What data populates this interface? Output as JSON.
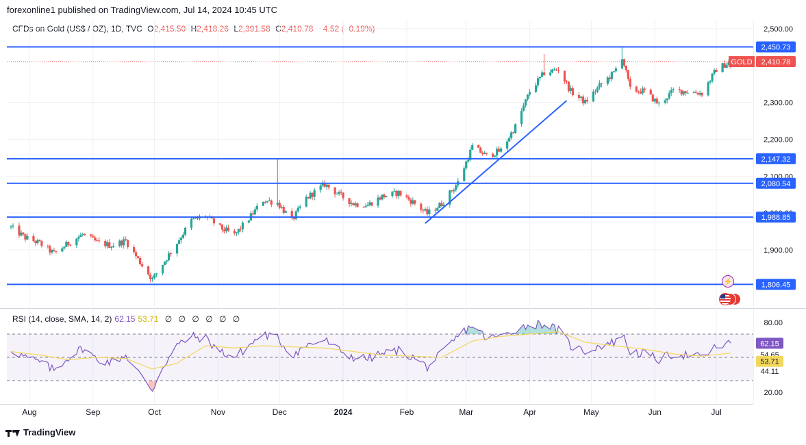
{
  "header": {
    "published_text": "forexonline1 published on TradingView.com, Jul 14, 2024 10:45 UTC"
  },
  "legend": {
    "symbol": "CFDs on Gold (US$ / OZ), 1D, TVC",
    "o_label": "O",
    "o_value": "2,415.50",
    "h_label": "H",
    "h_value": "2,418.26",
    "l_label": "L",
    "l_value": "2,391.58",
    "c_label": "C",
    "c_value": "2,410.78",
    "change": "−4.52 (−0.19%)"
  },
  "rsi_legend": {
    "label": "RSI (14, close, SMA, 14, 2)",
    "rsi_value": "62.15",
    "sma_value": "53.71",
    "null_values": [
      "∅",
      "∅",
      "∅",
      "∅",
      "∅",
      "∅"
    ]
  },
  "footer": {
    "brand": "TradingView"
  },
  "icons": {
    "flash": "flash-icon",
    "flag": "us-flag-icon"
  },
  "colors": {
    "up": "#26a69a",
    "down": "#ef5350",
    "line": "#2962ff",
    "rsi": "#7e57c2",
    "sma": "#f2d75c",
    "grid": "#eef0f4"
  },
  "chart_data": [
    {
      "type": "candlestick",
      "title": "CFDs on Gold (US$ / OZ), 1D, TVC",
      "x_ticks": [
        "Aug",
        "Sep",
        "Oct",
        "Nov",
        "Dec",
        "2024",
        "Feb",
        "Mar",
        "Apr",
        "May",
        "Jun",
        "Jul"
      ],
      "y_ticks": [
        "2,500.00",
        "2,300.00",
        "2,200.00",
        "2,100.00",
        "2,000.00",
        "1,900.00"
      ],
      "ylim": [
        1780,
        2500
      ],
      "current_price": 2410.78,
      "current_label": "2,410.78",
      "symbol_badge": "GOLD",
      "horizontal_lines": [
        {
          "value": 2450.73,
          "label": "2,450.73"
        },
        {
          "value": 2147.32,
          "label": "2,147.32"
        },
        {
          "value": 2080.54,
          "label": "2,080.54"
        },
        {
          "value": 1988.85,
          "label": "1,988.85"
        },
        {
          "value": 1806.45,
          "label": "1,806.45"
        }
      ],
      "trendline": {
        "start": [
          "2024-02-14",
          1972
        ],
        "end": [
          "2024-04-23",
          2305
        ]
      },
      "series": [
        {
          "points": [
            [
              "2023-07-27",
              1961
            ],
            [
              "2023-08-03",
              1933
            ],
            [
              "2023-08-10",
              1918
            ],
            [
              "2023-08-17",
              1890
            ],
            [
              "2023-08-24",
              1918
            ],
            [
              "2023-08-31",
              1942
            ],
            [
              "2023-09-07",
              1920
            ],
            [
              "2023-09-14",
              1912
            ],
            [
              "2023-09-21",
              1925
            ],
            [
              "2023-09-28",
              1866
            ],
            [
              "2023-10-04",
              1820
            ],
            [
              "2023-10-09",
              1862
            ],
            [
              "2023-10-16",
              1920
            ],
            [
              "2023-10-23",
              1980
            ],
            [
              "2023-10-30",
              1992
            ],
            [
              "2023-11-06",
              1960
            ],
            [
              "2023-11-13",
              1940
            ],
            [
              "2023-11-20",
              1985
            ],
            [
              "2023-11-27",
              2035
            ],
            [
              "2023-12-04",
              2028
            ],
            [
              "2023-12-11",
              1980
            ],
            [
              "2023-12-18",
              2040
            ],
            [
              "2023-12-27",
              2078
            ],
            [
              "2024-01-03",
              2050
            ],
            [
              "2024-01-10",
              2025
            ],
            [
              "2024-01-17",
              2022
            ],
            [
              "2024-01-24",
              2045
            ],
            [
              "2024-02-01",
              2055
            ],
            [
              "2024-02-08",
              2030
            ],
            [
              "2024-02-15",
              1998
            ],
            [
              "2024-02-22",
              2025
            ],
            [
              "2024-03-01",
              2083
            ],
            [
              "2024-03-08",
              2180
            ],
            [
              "2024-03-15",
              2155
            ],
            [
              "2024-03-22",
              2170
            ],
            [
              "2024-03-29",
              2235
            ],
            [
              "2024-04-05",
              2330
            ],
            [
              "2024-04-12",
              2380
            ],
            [
              "2024-04-19",
              2390
            ],
            [
              "2024-04-25",
              2330
            ],
            [
              "2024-05-02",
              2300
            ],
            [
              "2024-05-09",
              2345
            ],
            [
              "2024-05-16",
              2380
            ],
            [
              "2024-05-20",
              2425
            ],
            [
              "2024-05-24",
              2335
            ],
            [
              "2024-05-31",
              2330
            ],
            [
              "2024-06-07",
              2295
            ],
            [
              "2024-06-14",
              2332
            ],
            [
              "2024-06-21",
              2330
            ],
            [
              "2024-06-28",
              2325
            ],
            [
              "2024-07-05",
              2390
            ],
            [
              "2024-07-12",
              2411
            ]
          ]
        }
      ]
    },
    {
      "type": "line",
      "title": "RSI (14, close, SMA, 14, 2)",
      "y_ticks": [
        "80.00",
        "20.00"
      ],
      "ylim": [
        15,
        85
      ],
      "levels": [
        70,
        50,
        30
      ],
      "value_labels": [
        "62.15",
        "54.65",
        "53.71",
        "44.11"
      ],
      "series": [
        {
          "name": "RSI",
          "color": "#7e57c2",
          "points": [
            [
              "2023-07-27",
              57
            ],
            [
              "2023-08-03",
              50
            ],
            [
              "2023-08-10",
              46
            ],
            [
              "2023-08-17",
              39
            ],
            [
              "2023-08-24",
              50
            ],
            [
              "2023-08-31",
              58
            ],
            [
              "2023-09-07",
              48
            ],
            [
              "2023-09-14",
              46
            ],
            [
              "2023-09-21",
              52
            ],
            [
              "2023-09-28",
              35
            ],
            [
              "2023-10-04",
              22
            ],
            [
              "2023-10-09",
              42
            ],
            [
              "2023-10-16",
              60
            ],
            [
              "2023-10-23",
              68
            ],
            [
              "2023-10-30",
              66
            ],
            [
              "2023-11-06",
              55
            ],
            [
              "2023-11-13",
              50
            ],
            [
              "2023-11-20",
              60
            ],
            [
              "2023-11-27",
              70
            ],
            [
              "2023-12-04",
              66
            ],
            [
              "2023-12-11",
              52
            ],
            [
              "2023-12-18",
              60
            ],
            [
              "2023-12-27",
              65
            ],
            [
              "2024-01-03",
              56
            ],
            [
              "2024-01-10",
              50
            ],
            [
              "2024-01-17",
              49
            ],
            [
              "2024-01-24",
              53
            ],
            [
              "2024-02-01",
              56
            ],
            [
              "2024-02-08",
              50
            ],
            [
              "2024-02-15",
              42
            ],
            [
              "2024-02-22",
              53
            ],
            [
              "2024-03-01",
              68
            ],
            [
              "2024-03-08",
              78
            ],
            [
              "2024-03-15",
              66
            ],
            [
              "2024-03-22",
              68
            ],
            [
              "2024-03-29",
              74
            ],
            [
              "2024-04-05",
              78
            ],
            [
              "2024-04-12",
              79
            ],
            [
              "2024-04-19",
              73
            ],
            [
              "2024-04-25",
              60
            ],
            [
              "2024-05-02",
              55
            ],
            [
              "2024-05-09",
              60
            ],
            [
              "2024-05-16",
              63
            ],
            [
              "2024-05-20",
              70
            ],
            [
              "2024-05-24",
              55
            ],
            [
              "2024-05-31",
              53
            ],
            [
              "2024-06-07",
              48
            ],
            [
              "2024-06-14",
              53
            ],
            [
              "2024-06-21",
              52
            ],
            [
              "2024-06-28",
              50
            ],
            [
              "2024-07-05",
              59
            ],
            [
              "2024-07-12",
              62
            ]
          ]
        },
        {
          "name": "SMA",
          "color": "#f2d75c",
          "points": [
            [
              "2023-07-27",
              55
            ],
            [
              "2023-08-10",
              52
            ],
            [
              "2023-08-24",
              48
            ],
            [
              "2023-09-07",
              50
            ],
            [
              "2023-09-21",
              49
            ],
            [
              "2023-10-04",
              40
            ],
            [
              "2023-10-16",
              45
            ],
            [
              "2023-10-30",
              60
            ],
            [
              "2023-11-13",
              58
            ],
            [
              "2023-11-27",
              60
            ],
            [
              "2023-12-11",
              59
            ],
            [
              "2023-12-27",
              58
            ],
            [
              "2024-01-10",
              55
            ],
            [
              "2024-01-24",
              52
            ],
            [
              "2024-02-08",
              51
            ],
            [
              "2024-02-22",
              50
            ],
            [
              "2024-03-08",
              64
            ],
            [
              "2024-03-22",
              68
            ],
            [
              "2024-04-05",
              70
            ],
            [
              "2024-04-19",
              72
            ],
            [
              "2024-05-02",
              63
            ],
            [
              "2024-05-16",
              60
            ],
            [
              "2024-05-31",
              57
            ],
            [
              "2024-06-14",
              53
            ],
            [
              "2024-06-28",
              51
            ],
            [
              "2024-07-12",
              53.71
            ]
          ]
        }
      ]
    }
  ]
}
